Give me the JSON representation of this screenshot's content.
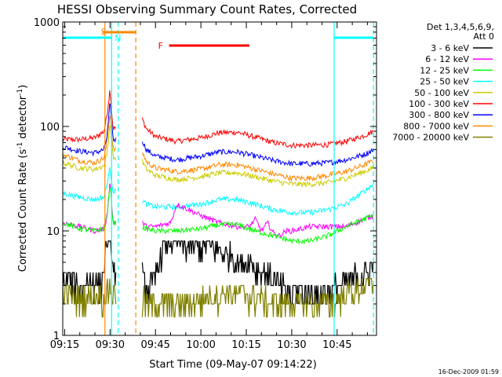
{
  "chart_data": {
    "type": "line",
    "title": "HESSI Observing Summary Count Rates, Corrected",
    "xlabel": "Start Time (09-May-07 09:14:22)",
    "ylabel_main": "Corrected Count Rate (s",
    "ylabel_sup1": "-1",
    "ylabel_mid": " detector",
    "ylabel_sup2": "-1",
    "ylabel_end": ")",
    "timestamp": "16-Dec-2009 01:59",
    "x_ticks": [
      "09:15",
      "09:30",
      "09:45",
      "10:00",
      "10:15",
      "10:30",
      "10:45"
    ],
    "x_tick_minutes": [
      15,
      30,
      45,
      60,
      75,
      90,
      105
    ],
    "xlim_minutes": [
      14.37,
      118
    ],
    "y_ticks": [
      "1",
      "10",
      "100",
      "1000"
    ],
    "y_tick_values": [
      1,
      10,
      100,
      1000
    ],
    "ylim": [
      1,
      1000
    ],
    "yscale": "log",
    "legend": {
      "placement": "right",
      "header_line1": "Det 1,3,4,5,6,9,",
      "header_line2": "Att 0",
      "entries": [
        {
          "label": "3 - 6 keV",
          "color": "#000000"
        },
        {
          "label": "6 - 12 keV",
          "color": "#ff00ff"
        },
        {
          "label": "12 - 25 keV",
          "color": "#00ff00"
        },
        {
          "label": "25 - 50 keV",
          "color": "#00ffff"
        },
        {
          "label": "50 - 100 keV",
          "color": "#cccc00"
        },
        {
          "label": "100 - 300 keV",
          "color": "#ff0000"
        },
        {
          "label": "300 - 800 keV",
          "color": "#0000ff"
        },
        {
          "label": "800 - 7000 keV",
          "color": "#ff8800"
        },
        {
          "label": "7000 - 20000 keV",
          "color": "#808000"
        }
      ]
    },
    "markers": {
      "S_label": "S",
      "N_label": "N",
      "F_label": "F",
      "S_bar": [
        27.5,
        38.5
      ],
      "F_bar": [
        49.5,
        76
      ],
      "N_bar_1": [
        14.37,
        30.5
      ],
      "N_bar_2": [
        104,
        117
      ]
    },
    "vertical_lines": [
      {
        "minute": 28.3,
        "color": "#ff8800",
        "style": "solid"
      },
      {
        "minute": 38.5,
        "color": "#ff8800",
        "style": "dashed"
      },
      {
        "minute": 30.5,
        "color": "#00ffff",
        "style": "solid"
      },
      {
        "minute": 32.7,
        "color": "#00ffff",
        "style": "dashed"
      },
      {
        "minute": 104,
        "color": "#00ffff",
        "style": "solid"
      },
      {
        "minute": 117,
        "color": "#00ffff",
        "style": "dashed"
      }
    ],
    "gap_minutes": [
      32,
      40.5
    ],
    "series": [
      {
        "name": "100 - 300 keV",
        "color": "#ff0000",
        "x": [
          14.4,
          20,
          25,
          28,
          29,
          30,
          31,
          40.5,
          42,
          45,
          52,
          60,
          66,
          72,
          78,
          84,
          90,
          96,
          102,
          108,
          114,
          117
        ],
        "y": [
          75,
          75,
          78,
          90,
          130,
          230,
          95,
          120,
          95,
          80,
          72,
          78,
          87,
          88,
          79,
          70,
          66,
          66,
          67,
          72,
          82,
          90
        ]
      },
      {
        "name": "300 - 800 keV",
        "color": "#0000ff",
        "x": [
          14.4,
          20,
          25,
          28,
          29,
          30,
          31,
          40.5,
          42,
          45,
          52,
          60,
          66,
          72,
          78,
          84,
          90,
          96,
          102,
          108,
          114,
          117
        ],
        "y": [
          64,
          58,
          56,
          60,
          80,
          170,
          75,
          75,
          60,
          52,
          48,
          52,
          57,
          57,
          52,
          47,
          44,
          44,
          45,
          48,
          54,
          60
        ]
      },
      {
        "name": "800 - 7000 keV",
        "color": "#ff8800",
        "x": [
          14.4,
          20,
          25,
          28,
          29,
          30,
          31,
          40.5,
          42,
          45,
          52,
          60,
          66,
          72,
          78,
          84,
          90,
          96,
          102,
          108,
          114,
          117
        ],
        "y": [
          54,
          47,
          45,
          50,
          70,
          140,
          60,
          58,
          46,
          40,
          37,
          39,
          43,
          43,
          39,
          35,
          32,
          32,
          34,
          37,
          43,
          47
        ]
      },
      {
        "name": "50 - 100 keV",
        "color": "#cccc00",
        "x": [
          14.4,
          20,
          25,
          28,
          29,
          30,
          31,
          40.5,
          42,
          45,
          52,
          60,
          66,
          72,
          78,
          84,
          90,
          96,
          102,
          108,
          114,
          117
        ],
        "y": [
          45,
          40,
          39,
          42,
          55,
          110,
          50,
          47,
          39,
          34,
          31,
          33,
          36,
          36,
          33,
          30,
          28,
          28,
          29,
          32,
          37,
          40
        ]
      },
      {
        "name": "25 - 50 keV",
        "color": "#00ffff",
        "x": [
          14.4,
          20,
          25,
          28,
          29,
          30,
          31,
          40.5,
          42,
          45,
          52,
          60,
          66,
          72,
          78,
          84,
          90,
          96,
          102,
          108,
          114,
          117
        ],
        "y": [
          23,
          21,
          20,
          21,
          28,
          40,
          24,
          20,
          18,
          17,
          17,
          18,
          20,
          20,
          18,
          16,
          15,
          15,
          16,
          18,
          24,
          28
        ]
      },
      {
        "name": "6 - 12 keV",
        "color": "#ff00ff",
        "x": [
          14.4,
          20,
          25,
          28,
          29,
          30,
          31,
          40.5,
          42,
          45,
          50,
          52,
          56,
          60,
          66,
          72,
          76,
          78,
          80,
          82,
          84,
          86,
          88,
          90,
          96,
          102,
          108,
          114,
          117
        ],
        "y": [
          12,
          11,
          10,
          10.5,
          14,
          30,
          12,
          12,
          11,
          11,
          12,
          18,
          16,
          14,
          12,
          11,
          11,
          13,
          10,
          12,
          9.5,
          9,
          10,
          10,
          11,
          11,
          11,
          13,
          14
        ]
      },
      {
        "name": "12 - 25 keV",
        "color": "#00ff00",
        "x": [
          14.4,
          20,
          25,
          28,
          29,
          30,
          31,
          40.5,
          42,
          45,
          52,
          60,
          66,
          72,
          78,
          84,
          90,
          96,
          102,
          108,
          114,
          117
        ],
        "y": [
          12,
          10.5,
          10,
          10.5,
          14,
          28,
          12,
          11,
          10.5,
          10,
          10,
          10.5,
          11.5,
          11.5,
          10,
          9,
          8,
          8,
          9,
          11,
          13,
          14
        ]
      },
      {
        "name": "3 - 6 keV",
        "color": "#000000",
        "x": [
          14.4,
          20,
          25,
          27,
          28,
          29,
          30,
          31,
          40.5,
          42,
          44,
          46,
          48,
          50,
          52,
          56,
          60,
          64,
          68,
          70,
          72,
          76,
          80,
          84,
          86,
          90,
          94,
          98,
          102,
          106,
          110,
          114,
          117
        ],
        "y": [
          3.5,
          3,
          3.5,
          3,
          4.5,
          8,
          14,
          4,
          4,
          3,
          3,
          5,
          7.5,
          8,
          8,
          7,
          7,
          7,
          6,
          6,
          5,
          5,
          4,
          3.5,
          3,
          2.5,
          2.5,
          2.5,
          2.5,
          3,
          3.5,
          4,
          4.5
        ]
      },
      {
        "name": "7000 - 20000 keV",
        "color": "#808000",
        "x": [
          14.4,
          20,
          25,
          28,
          29,
          30,
          31,
          40.5,
          44,
          50,
          56,
          60,
          66,
          72,
          78,
          84,
          90,
          96,
          102,
          108,
          114,
          117
        ],
        "y": [
          2.5,
          2.3,
          2.5,
          2.3,
          2.5,
          3,
          2.5,
          2.2,
          2,
          2,
          2,
          2.2,
          2.5,
          2.5,
          2.3,
          2,
          2,
          2,
          2,
          2.5,
          3,
          3
        ]
      }
    ]
  }
}
